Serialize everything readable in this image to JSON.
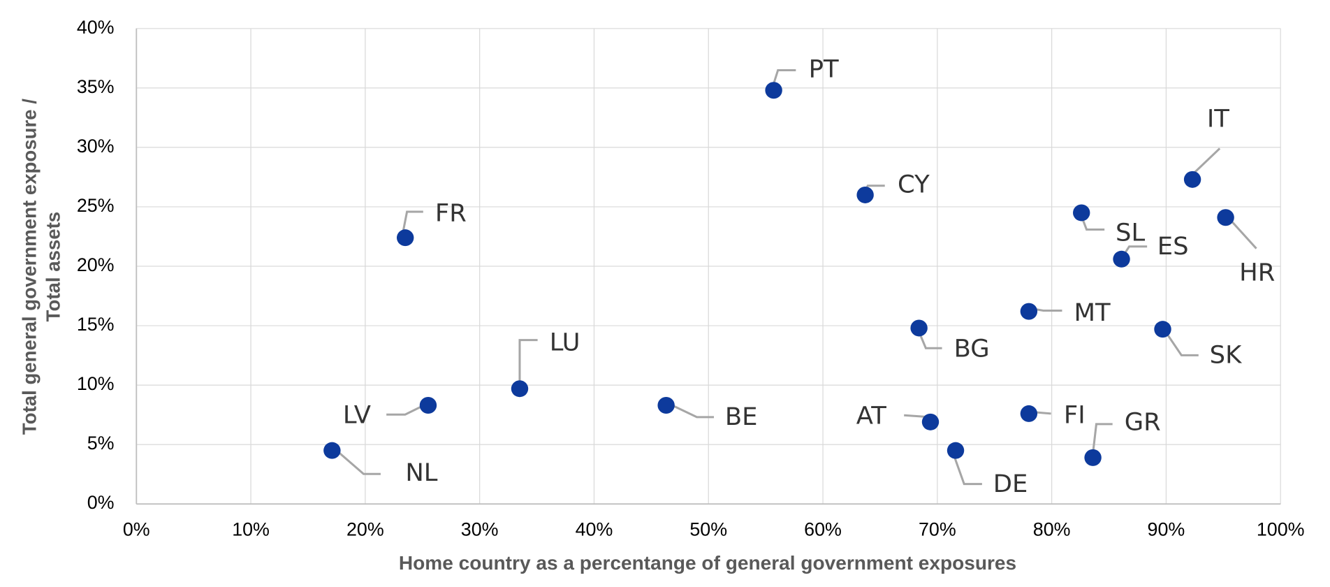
{
  "chart_data": {
    "type": "scatter",
    "xlabel": "Home country as a percentange of general government exposures",
    "ylabel": [
      "Total general government exposure /",
      "Total assets"
    ],
    "labels": [
      "PT",
      "CY",
      "FR",
      "IT",
      "HR",
      "SL",
      "ES",
      "MT",
      "BG",
      "SK",
      "LU",
      "LV",
      "BE",
      "AT",
      "FI",
      "DE",
      "GR",
      "NL"
    ],
    "x": [
      55.7,
      63.7,
      23.5,
      92.3,
      95.2,
      82.6,
      86.1,
      78.0,
      68.4,
      89.7,
      33.5,
      25.5,
      46.3,
      69.4,
      78.0,
      71.6,
      83.6,
      17.1
    ],
    "values": [
      34.8,
      26.0,
      22.4,
      27.3,
      24.1,
      24.5,
      20.6,
      16.2,
      14.8,
      14.7,
      9.7,
      8.3,
      8.3,
      6.9,
      7.6,
      4.5,
      3.9,
      4.5
    ],
    "color": "#0d3a9c",
    "xlim": [
      0,
      100
    ],
    "xticks": [
      {
        "value": 0,
        "label": "0%"
      },
      {
        "value": 10,
        "label": "10%"
      },
      {
        "value": 20,
        "label": "20%"
      },
      {
        "value": 30,
        "label": "30%"
      },
      {
        "value": 40,
        "label": "40%"
      },
      {
        "value": 50,
        "label": "50%"
      },
      {
        "value": 60,
        "label": "60%"
      },
      {
        "value": 70,
        "label": "70%"
      },
      {
        "value": 80,
        "label": "80%"
      },
      {
        "value": 90,
        "label": "90%"
      },
      {
        "value": 100,
        "label": "100%"
      }
    ],
    "ylim": [
      0,
      40
    ],
    "yticks": [
      {
        "value": 0,
        "label": "0%"
      },
      {
        "value": 5,
        "label": "5%"
      },
      {
        "value": 10,
        "label": "10%"
      },
      {
        "value": 15,
        "label": "15%"
      },
      {
        "value": 20,
        "label": "20%"
      },
      {
        "value": 25,
        "label": "25%"
      },
      {
        "value": 30,
        "label": "30%"
      },
      {
        "value": 35,
        "label": "35%"
      },
      {
        "value": 40,
        "label": "40%"
      }
    ],
    "grid": true
  }
}
